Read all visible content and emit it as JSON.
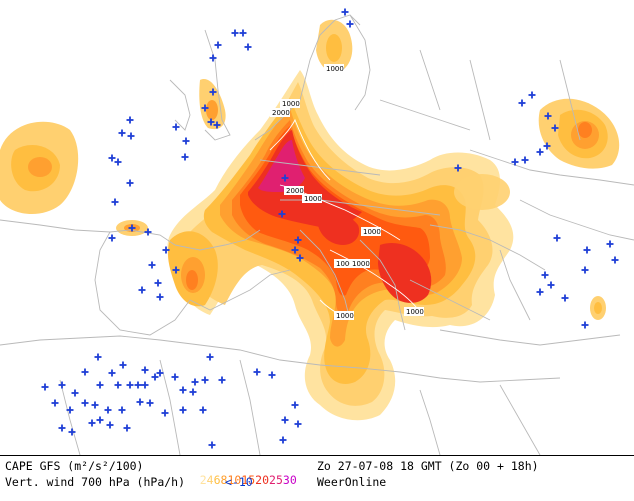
{
  "legend": {
    "title": "CAPE GFS (m²/s²/100)",
    "scale": [
      {
        "label": "2",
        "color": "#ffe3a0"
      },
      {
        "label": "4",
        "color": "#ffd070"
      },
      {
        "label": "6",
        "color": "#ffbe40"
      },
      {
        "label": "8",
        "color": "#ffa030"
      },
      {
        "label": "10",
        "color": "#ff8020"
      },
      {
        "label": "15",
        "color": "#ff5a10"
      },
      {
        "label": "20",
        "color": "#ee3020"
      },
      {
        "label": "25",
        "color": "#e02070"
      },
      {
        "label": "30",
        "color": "#c800c8"
      }
    ],
    "date": "Zo 27-07-08 18 GMT (Zo 00 + 18h)",
    "vertical_wind": "Vert. wind 700 hPa (hPa/h)",
    "threshold": "<-10",
    "brand": "WeerOnline"
  },
  "contour_labels": [
    "1000",
    "1000",
    "2000",
    "2000",
    "1000",
    "1000",
    "1000",
    "1000",
    "1000",
    "1000"
  ],
  "colors": {
    "land": "#ffffff",
    "borders": "#b9b9b9",
    "plus_markers": "#1f3fd6"
  },
  "cape_values": [
    2,
    4,
    6,
    8,
    10,
    15,
    20,
    25,
    30
  ]
}
